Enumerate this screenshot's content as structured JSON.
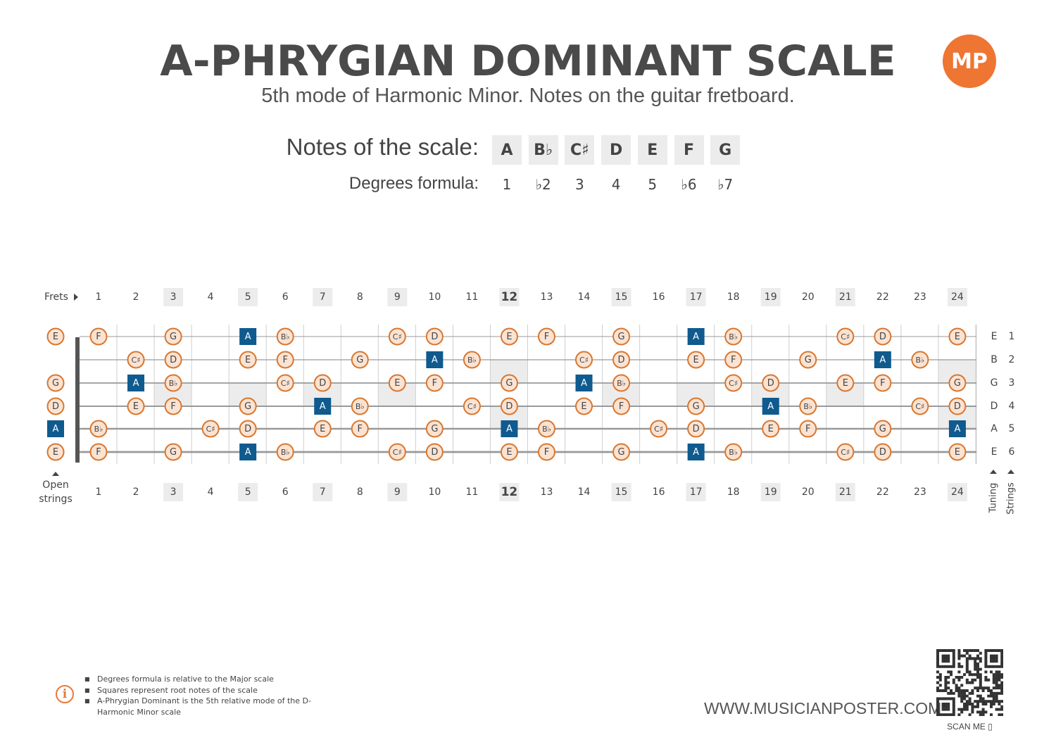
{
  "header": {
    "title": "A-PHRYGIAN DOMINANT SCALE",
    "subtitle": "5th mode of Harmonic Minor. Notes on the guitar fretboard.",
    "logo_text": "MP"
  },
  "scale": {
    "notes_label": "Notes of the scale:",
    "degrees_label": "Degrees formula:",
    "notes": [
      "A",
      "B♭",
      "C♯",
      "D",
      "E",
      "F",
      "G"
    ],
    "degrees": [
      "1",
      "♭2",
      "3",
      "4",
      "5",
      "♭6",
      "♭7"
    ]
  },
  "fretboard": {
    "frets_label": "Frets",
    "open_strings_label": [
      "Open",
      "strings"
    ],
    "tuning_label": "Tuning",
    "strings_label": "Strings",
    "fret_numbers": [
      "1",
      "2",
      "3",
      "4",
      "5",
      "6",
      "7",
      "8",
      "9",
      "10",
      "11",
      "12",
      "13",
      "14",
      "15",
      "16",
      "17",
      "18",
      "19",
      "20",
      "21",
      "22",
      "23",
      "24"
    ],
    "marked_frets": [
      3,
      5,
      7,
      9,
      12,
      15,
      17,
      19,
      21,
      24
    ],
    "bold_frets": [
      12
    ],
    "double_dot_frets": [
      12,
      24
    ],
    "single_dot_frets": [
      3,
      5,
      7,
      9,
      15,
      17,
      19,
      21
    ],
    "strings": [
      {
        "number": "1",
        "tuning": "E",
        "notes": {
          "0": "E",
          "1": "F",
          "3": "G",
          "5": "A",
          "6": "Bb",
          "9": "C#",
          "10": "D",
          "12": "E",
          "13": "F",
          "15": "G",
          "17": "A",
          "18": "Bb",
          "21": "C#",
          "22": "D",
          "24": "E"
        }
      },
      {
        "number": "2",
        "tuning": "B",
        "notes": {
          "2": "C#",
          "3": "D",
          "5": "E",
          "6": "F",
          "8": "G",
          "10": "A",
          "11": "Bb",
          "14": "C#",
          "15": "D",
          "17": "E",
          "18": "F",
          "20": "G",
          "22": "A",
          "23": "Bb"
        }
      },
      {
        "number": "3",
        "tuning": "G",
        "notes": {
          "0": "G",
          "2": "A",
          "3": "Bb",
          "6": "C#",
          "7": "D",
          "9": "E",
          "10": "F",
          "12": "G",
          "14": "A",
          "15": "Bb",
          "18": "C#",
          "19": "D",
          "21": "E",
          "22": "F",
          "24": "G"
        }
      },
      {
        "number": "4",
        "tuning": "D",
        "notes": {
          "0": "D",
          "2": "E",
          "3": "F",
          "5": "G",
          "7": "A",
          "8": "Bb",
          "11": "C#",
          "12": "D",
          "14": "E",
          "15": "F",
          "17": "G",
          "19": "A",
          "20": "Bb",
          "23": "C#",
          "24": "D"
        }
      },
      {
        "number": "5",
        "tuning": "A",
        "notes": {
          "0": "A",
          "1": "Bb",
          "4": "C#",
          "5": "D",
          "7": "E",
          "8": "F",
          "10": "G",
          "12": "A",
          "13": "Bb",
          "16": "C#",
          "17": "D",
          "19": "E",
          "20": "F",
          "22": "G",
          "24": "A"
        }
      },
      {
        "number": "6",
        "tuning": "E",
        "notes": {
          "0": "E",
          "1": "F",
          "3": "G",
          "5": "A",
          "6": "Bb",
          "9": "C#",
          "10": "D",
          "12": "E",
          "13": "F",
          "15": "G",
          "17": "A",
          "18": "Bb",
          "21": "C#",
          "22": "D",
          "24": "E"
        }
      }
    ],
    "root_note": "A",
    "colors": {
      "circle_fill": "#fbe3d3",
      "circle_stroke": "#d9772f",
      "root_fill": "#0f5a8e",
      "inlay": "#ececec",
      "nut": "#555555",
      "string": "#999999"
    }
  },
  "footer": {
    "notes": [
      "Degrees formula is relative to the Major scale",
      "Squares represent root notes of the scale",
      "A-Phrygian Dominant is the 5th relative mode of the D-Harmonic Minor scale"
    ],
    "website": "WWW.MUSICIANPOSTER.COM",
    "scan_me": "SCAN ME"
  }
}
